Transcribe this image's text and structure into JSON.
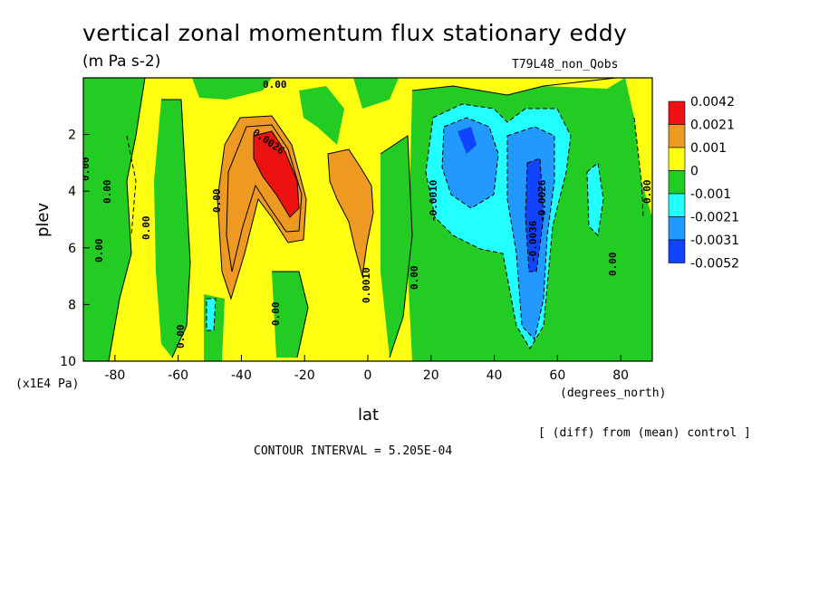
{
  "figure": {
    "title": "vertical zonal momentum flux stationary eddy",
    "units": "(m Pa s-2)",
    "run_label": "T79L48_non_Qobs",
    "y_scale_note": "(x1E4 Pa)",
    "x_units_note": "(degrees_north)",
    "diff_note": "[ (diff) from (mean) control ]",
    "contour_interval": "CONTOUR INTERVAL = 5.205E-04"
  },
  "chart_data": {
    "type": "heatmap",
    "xlabel": "lat",
    "ylabel": "plev",
    "xlim": [
      -90,
      90
    ],
    "ylim": [
      10,
      0
    ],
    "x_ticks": [
      -80,
      -60,
      -40,
      -20,
      0,
      20,
      40,
      60,
      80
    ],
    "x_tick_labels": [
      "-80",
      "-60",
      "-40",
      "-20",
      "0",
      "20",
      "40",
      "60",
      "80"
    ],
    "y_ticks": [
      2,
      4,
      6,
      8,
      10
    ],
    "y_tick_labels": [
      "2",
      "4",
      "6",
      "8",
      "10"
    ],
    "colorbar": {
      "labels": [
        "0.0042",
        "0.0021",
        "0.001",
        "0",
        "-0.001",
        "-0.0021",
        "-0.0031",
        "-0.0052"
      ],
      "colors": [
        "#ee1111",
        "#ee9922",
        "#ffff11",
        "#22cc22",
        "#22ffff",
        "#2299ff",
        "#1144ff"
      ]
    },
    "features": [
      {
        "lat": -29,
        "plev": 3.6,
        "value": 0.0042
      },
      {
        "lat": -32,
        "plev": 4.0,
        "value": 0.0021
      },
      {
        "lat": -2,
        "plev": 5.0,
        "value": 0.0015
      },
      {
        "lat": 35,
        "plev": 4.0,
        "value": -0.0025
      },
      {
        "lat": 52,
        "plev": 5.5,
        "value": -0.0045
      },
      {
        "lat": 70,
        "plev": 4.5,
        "value": -0.0012
      }
    ],
    "contour_labels": [
      "0.00",
      "0.00",
      "0.00",
      "0.00",
      "0.00",
      "0.00",
      "0.00",
      "0.00",
      "0.00",
      "0.00",
      "0.00",
      "0.0010",
      "-0.0010",
      "0.0026",
      "-0.0036",
      "-0.0026"
    ]
  }
}
